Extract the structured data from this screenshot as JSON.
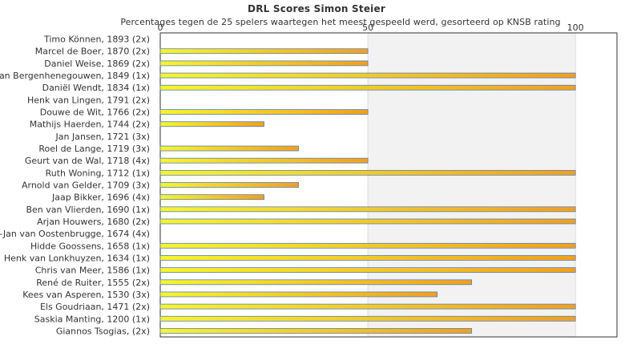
{
  "chart_data": {
    "type": "bar",
    "orientation": "horizontal",
    "title": "DRL Scores Simon Steier",
    "subtitle": "Percentages tegen de 25 spelers waartegen het meest gespeeld werd, gesorteerd op KNSB rating",
    "xlabel": "",
    "ylabel": "",
    "xlim": [
      0,
      110
    ],
    "xticks": [
      0,
      50,
      100
    ],
    "grid": true,
    "legend": "none",
    "colors": {
      "bar_start": "#f5f52e",
      "bar_end": "#f0a020",
      "bar_stroke": "#5a7fb8",
      "band_dark": "#f2f2f2",
      "band_light": "#f7f7fb",
      "axis": "#333333"
    },
    "categories": [
      "Timo Können, 1893 (2x)",
      "Marcel de Boer, 1870 (2x)",
      "Daniel Weise, 1869 (2x)",
      "Ivo van Bergenhenegouwen, 1849 (1x)",
      "Daniël Wendt, 1834 (1x)",
      "Henk van Lingen, 1791 (2x)",
      "Douwe de Wit, 1766 (2x)",
      "Mathijs Haerden, 1744 (2x)",
      "Jan Jansen, 1721 (3x)",
      "Roel de Lange, 1719 (3x)",
      "Geurt van de Wal, 1718 (4x)",
      "Ruth Woning, 1712 (1x)",
      "Arnold van Gelder, 1709 (3x)",
      "Jaap Bikker, 1696 (4x)",
      "Ben van Vlierden, 1690 (1x)",
      "Arjan Houwers, 1680 (2x)",
      "Bert-Jan van Oostenbrugge, 1674 (4x)",
      "Hidde Goossens, 1658 (1x)",
      "Henk van Lonkhuyzen, 1634 (1x)",
      "Chris van Meer, 1586 (1x)",
      "René de Ruiter, 1555 (2x)",
      "Kees van Asperen, 1530 (3x)",
      "Els Goudriaan, 1471 (2x)",
      "Saskia Manting, 1200 (1x)",
      "Giannos Tsogias,  (2x)"
    ],
    "values": [
      0,
      50,
      50,
      100,
      100,
      0,
      50,
      25,
      0,
      33.3,
      50,
      100,
      33.3,
      25,
      100,
      100,
      0,
      100,
      100,
      100,
      75,
      66.7,
      100,
      100,
      75
    ]
  }
}
